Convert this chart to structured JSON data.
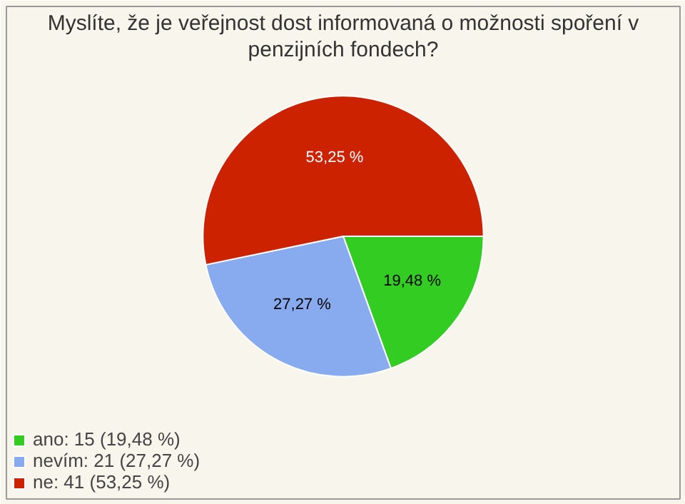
{
  "chart_data": {
    "type": "pie",
    "title": "Myslíte, že je veřejnost dost informovaná o možnosti spoření v penzijních fondech?",
    "categories": [
      "ano: 15 (19,48 %)",
      "nevím: 21 (27,27 %)",
      "ne: 41 (53,25 %)"
    ],
    "values": [
      19.48,
      27.27,
      53.25
    ],
    "colors": [
      "#33cc22",
      "#88aaee",
      "#cc2200"
    ],
    "value_labels": [
      "19,48 %",
      "27,27 %",
      "53,25 %"
    ],
    "legend": "bottom left"
  }
}
